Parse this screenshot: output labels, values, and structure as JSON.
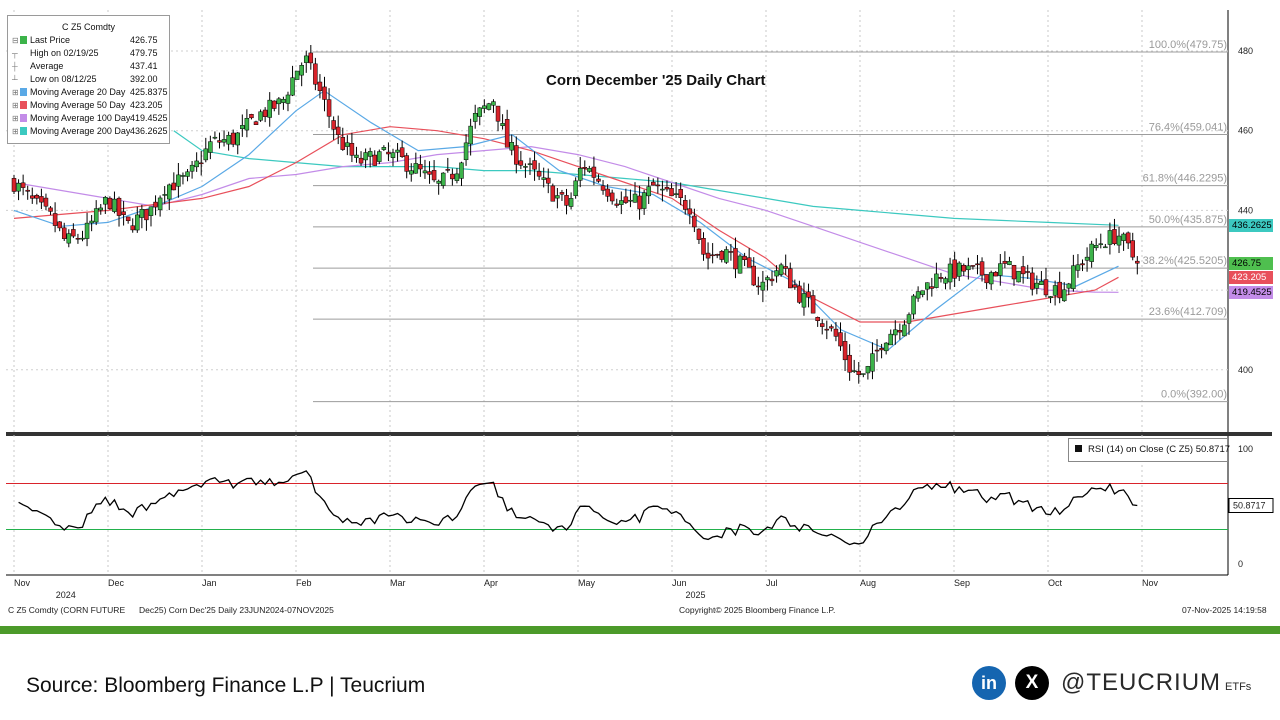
{
  "title": "Corn December '25 Daily Chart",
  "legend": {
    "title": "C Z5 Comdty",
    "rows": [
      {
        "label": "Last Price",
        "value": "426.75",
        "color": "#3cb34a",
        "marker": "⊟"
      },
      {
        "label": "High on 02/19/25",
        "value": "479.75",
        "color": "",
        "marker": "┬"
      },
      {
        "label": "Average",
        "value": "437.41",
        "color": "",
        "marker": "┼"
      },
      {
        "label": "Low on 08/12/25",
        "value": "392.00",
        "color": "",
        "marker": "┴"
      },
      {
        "label": "Moving Average 20 Day",
        "value": "425.8375",
        "color": "#5aa9e6",
        "marker": "⊞"
      },
      {
        "label": "Moving Average 50 Day",
        "value": "423.205",
        "color": "#e8505b",
        "marker": "⊞"
      },
      {
        "label": "Moving Average 100 Day",
        "value": "419.4525",
        "color": "#c38ce8",
        "marker": "⊞"
      },
      {
        "label": "Moving Average 200 Day",
        "value": "436.2625",
        "color": "#3cc9c0",
        "marker": "⊞"
      }
    ]
  },
  "rsi_label": "RSI (14)  on Close (C Z5) 50.8717",
  "right_tags": [
    {
      "value": "436.2625",
      "bg": "#3cc9c0",
      "color": "#000000",
      "price": 436.26
    },
    {
      "value": "426.75",
      "bg": "#4fbf4f",
      "color": "#000000",
      "price": 426.75
    },
    {
      "value": "423.205",
      "bg": "#e8505b",
      "color": "#ffffff",
      "price": 423.2
    },
    {
      "value": "419.4525",
      "bg": "#c38ce8",
      "color": "#000000",
      "price": 419.45
    }
  ],
  "rsi_tag": {
    "value": "50.8717",
    "bg": "#ffffff",
    "color": "#000000"
  },
  "footer": {
    "left": "C Z5 Comdty (CORN FUTURE",
    "mid": "Dec25) Corn Dec'25 Daily 23JUN2024-07NOV2025",
    "copyright": "Copyright© 2025 Bloomberg Finance L.P.",
    "timestamp": "07-Nov-2025 14:19:58"
  },
  "source": "Source: Bloomberg Finance L.P | Teucrium",
  "brand": {
    "linkedin": "in",
    "x": "X",
    "handle": "@TEUCRIUM",
    "suffix": "ETFs"
  },
  "colors": {
    "up": "#3cb34a",
    "down": "#d9232b",
    "ma20": "#5aa9e6",
    "ma50": "#e8505b",
    "ma100": "#c38ce8",
    "ma200": "#3cc9c0",
    "rsi_upper": "#d9232b",
    "rsi_lower": "#22b14c"
  },
  "chart_data": {
    "type": "candlestick",
    "title": "Corn December '25 Daily Chart",
    "ylim": [
      385,
      482
    ],
    "yticks": [
      400,
      420,
      440,
      460,
      480
    ],
    "x_labels": [
      {
        "label": "Nov",
        "t": 0.0
      },
      {
        "label": "Dec",
        "t": 1.0
      },
      {
        "label": "Jan",
        "t": 2.0
      },
      {
        "label": "Feb",
        "t": 3.0
      },
      {
        "label": "Mar",
        "t": 4.0
      },
      {
        "label": "Apr",
        "t": 5.0
      },
      {
        "label": "May",
        "t": 6.0
      },
      {
        "label": "Jun",
        "t": 7.0
      },
      {
        "label": "Jul",
        "t": 8.0
      },
      {
        "label": "Aug",
        "t": 9.0
      },
      {
        "label": "Sep",
        "t": 10.0
      },
      {
        "label": "Oct",
        "t": 11.0
      },
      {
        "label": "Nov",
        "t": 12.0
      }
    ],
    "year_labels": [
      {
        "label": "2024",
        "t": 0.55
      },
      {
        "label": "2025",
        "t": 7.25
      }
    ],
    "fib_levels": [
      {
        "label": "100.0%(479.75)",
        "price": 479.75
      },
      {
        "label": "76.4%(459.041)",
        "price": 459.04
      },
      {
        "label": "61.8%(446.2295)",
        "price": 446.23
      },
      {
        "label": "50.0%(435.875)",
        "price": 435.88
      },
      {
        "label": "38.2%(425.5205)",
        "price": 425.52
      },
      {
        "label": "23.6%(412.709)",
        "price": 412.71
      },
      {
        "label": "0.0%(392.00)",
        "price": 392.0
      }
    ],
    "close_anchors": [
      [
        0,
        447
      ],
      [
        0.2,
        442
      ],
      [
        0.4,
        438
      ],
      [
        0.55,
        432
      ],
      [
        0.75,
        434
      ],
      [
        1.0,
        443
      ],
      [
        1.2,
        436
      ],
      [
        1.45,
        440
      ],
      [
        1.6,
        446
      ],
      [
        1.85,
        448
      ],
      [
        2.1,
        457
      ],
      [
        2.35,
        458
      ],
      [
        2.6,
        464
      ],
      [
        2.85,
        467
      ],
      [
        3.0,
        475
      ],
      [
        3.1,
        478
      ],
      [
        3.25,
        470
      ],
      [
        3.45,
        458
      ],
      [
        3.65,
        452
      ],
      [
        3.9,
        454
      ],
      [
        4.1,
        453
      ],
      [
        4.3,
        450
      ],
      [
        4.5,
        446
      ],
      [
        4.7,
        450
      ],
      [
        4.9,
        463
      ],
      [
        5.1,
        468
      ],
      [
        5.25,
        456
      ],
      [
        5.45,
        451
      ],
      [
        5.7,
        445
      ],
      [
        5.9,
        441
      ],
      [
        6.05,
        452
      ],
      [
        6.25,
        447
      ],
      [
        6.45,
        442
      ],
      [
        6.65,
        442
      ],
      [
        6.8,
        446
      ],
      [
        7.0,
        443
      ],
      [
        7.2,
        441
      ],
      [
        7.35,
        428
      ],
      [
        7.55,
        430
      ],
      [
        7.75,
        426
      ],
      [
        7.95,
        421
      ],
      [
        8.15,
        426
      ],
      [
        8.35,
        419
      ],
      [
        8.55,
        414
      ],
      [
        8.75,
        408
      ],
      [
        8.9,
        400
      ],
      [
        9.05,
        398
      ],
      [
        9.25,
        408
      ],
      [
        9.45,
        412
      ],
      [
        9.65,
        420
      ],
      [
        9.85,
        424
      ],
      [
        10.1,
        425
      ],
      [
        10.35,
        424
      ],
      [
        10.55,
        426
      ],
      [
        10.75,
        423
      ],
      [
        10.95,
        421
      ],
      [
        11.15,
        420
      ],
      [
        11.35,
        427
      ],
      [
        11.55,
        432
      ],
      [
        11.75,
        434
      ],
      [
        11.95,
        426.75
      ]
    ],
    "ma20": [
      [
        0.0,
        440
      ],
      [
        0.5,
        436
      ],
      [
        1.0,
        437
      ],
      [
        1.5,
        441
      ],
      [
        2.0,
        446
      ],
      [
        2.5,
        454
      ],
      [
        3.0,
        465
      ],
      [
        3.3,
        470
      ],
      [
        3.8,
        462
      ],
      [
        4.3,
        455
      ],
      [
        4.8,
        456
      ],
      [
        5.3,
        459
      ],
      [
        5.8,
        450
      ],
      [
        6.3,
        446
      ],
      [
        6.8,
        444
      ],
      [
        7.3,
        437
      ],
      [
        7.8,
        428
      ],
      [
        8.3,
        422
      ],
      [
        8.8,
        410
      ],
      [
        9.3,
        405
      ],
      [
        9.8,
        415
      ],
      [
        10.3,
        424
      ],
      [
        10.8,
        423
      ],
      [
        11.3,
        421
      ],
      [
        11.75,
        426
      ]
    ],
    "ma50": [
      [
        0.0,
        438
      ],
      [
        1.0,
        440
      ],
      [
        2.0,
        443
      ],
      [
        2.5,
        446
      ],
      [
        3.0,
        452
      ],
      [
        3.5,
        459
      ],
      [
        4.0,
        461
      ],
      [
        4.5,
        460
      ],
      [
        5.0,
        458
      ],
      [
        5.5,
        455
      ],
      [
        6.0,
        451
      ],
      [
        6.5,
        447
      ],
      [
        7.0,
        443
      ],
      [
        7.5,
        435
      ],
      [
        8.0,
        428
      ],
      [
        8.5,
        418
      ],
      [
        9.0,
        412
      ],
      [
        9.5,
        412
      ],
      [
        10.0,
        414
      ],
      [
        10.5,
        416
      ],
      [
        11.0,
        418
      ],
      [
        11.5,
        420
      ],
      [
        11.75,
        423.2
      ]
    ],
    "ma100": [
      [
        0.0,
        447
      ],
      [
        1.0,
        443
      ],
      [
        1.5,
        441
      ],
      [
        2.0,
        444
      ],
      [
        2.5,
        448
      ],
      [
        3.0,
        449
      ],
      [
        3.5,
        451
      ],
      [
        4.0,
        452
      ],
      [
        4.5,
        454
      ],
      [
        5.0,
        455
      ],
      [
        5.5,
        456
      ],
      [
        6.0,
        454
      ],
      [
        6.5,
        451
      ],
      [
        7.0,
        447
      ],
      [
        7.5,
        443
      ],
      [
        8.0,
        440
      ],
      [
        8.5,
        436
      ],
      [
        9.0,
        432
      ],
      [
        9.5,
        428
      ],
      [
        10.0,
        424
      ],
      [
        10.5,
        422
      ],
      [
        11.0,
        420
      ],
      [
        11.5,
        419.5
      ],
      [
        11.75,
        419.45
      ]
    ],
    "ma200": [
      [
        1.7,
        460
      ],
      [
        2.0,
        455
      ],
      [
        2.5,
        453
      ],
      [
        3.0,
        452
      ],
      [
        3.5,
        451
      ],
      [
        4.0,
        451
      ],
      [
        4.5,
        451
      ],
      [
        5.0,
        450
      ],
      [
        5.5,
        450
      ],
      [
        6.0,
        449
      ],
      [
        6.5,
        448
      ],
      [
        7.0,
        447
      ],
      [
        7.5,
        445
      ],
      [
        8.0,
        443
      ],
      [
        8.5,
        441
      ],
      [
        9.0,
        440
      ],
      [
        9.5,
        439
      ],
      [
        10.0,
        438
      ],
      [
        10.5,
        437.5
      ],
      [
        11.0,
        437
      ],
      [
        11.75,
        436.26
      ]
    ],
    "rsi": {
      "ylim": [
        0,
        100
      ],
      "yticks": [
        0,
        100
      ],
      "upper": 70,
      "lower": 30,
      "last": 50.8717
    }
  }
}
